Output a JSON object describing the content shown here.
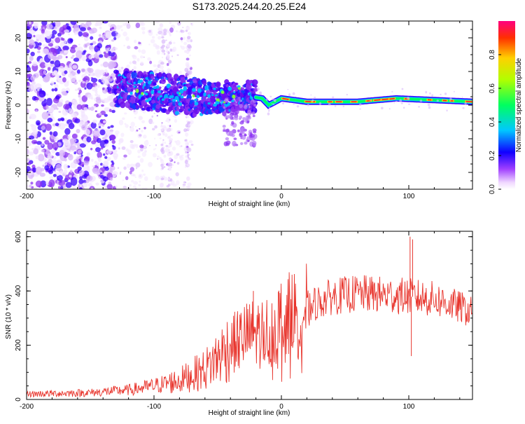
{
  "title": "S173.2025.244.20.25.E24",
  "chart_data": [
    {
      "type": "heatmap",
      "name": "spectrogram",
      "title": "S173.2025.244.20.25.E24",
      "xlabel": "Height of straight line (km)",
      "ylabel": "Frequency (Hz)",
      "xlim": [
        -200,
        150
      ],
      "ylim": [
        -25,
        25
      ],
      "x_ticks": [
        -200,
        -100,
        0,
        100
      ],
      "x_tick_labels": [
        "-200",
        "-100",
        "0",
        "100"
      ],
      "y_ticks": [
        -20,
        -10,
        0,
        10,
        20
      ],
      "y_tick_labels": [
        "-20",
        "-10",
        "0",
        "10",
        "20"
      ],
      "colorbar": {
        "label": "Normalized spectral amplitude",
        "range": [
          0,
          1
        ],
        "ticks": [
          0.0,
          0.2,
          0.4,
          0.6,
          0.8
        ],
        "tick_labels": [
          "0.0",
          "0.2",
          "0.4",
          "0.6",
          "0.8"
        ],
        "colors": [
          "#ffffff",
          "#d8b4f8",
          "#7a00ff",
          "#0010ff",
          "#00c8ff",
          "#00ff70",
          "#b0ff00",
          "#ffd000",
          "#ff3000",
          "#ff0080"
        ]
      },
      "ridge_centerline": [
        {
          "x": -130,
          "y": 5
        },
        {
          "x": -100,
          "y": 4
        },
        {
          "x": -60,
          "y": 2
        },
        {
          "x": -30,
          "y": 3
        },
        {
          "x": -15,
          "y": 2
        },
        {
          "x": -10,
          "y": 0
        },
        {
          "x": 0,
          "y": 2
        },
        {
          "x": 20,
          "y": 1
        },
        {
          "x": 60,
          "y": 1
        },
        {
          "x": 90,
          "y": 2
        },
        {
          "x": 150,
          "y": 1
        }
      ]
    },
    {
      "type": "line",
      "name": "snr",
      "xlabel": "Height of straight line (km)",
      "ylabel": "SNR (10 * v/v)",
      "xlim": [
        -200,
        150
      ],
      "ylim": [
        0,
        620
      ],
      "x_ticks": [
        -200,
        -100,
        0,
        100
      ],
      "x_tick_labels": [
        "-200",
        "-100",
        "0",
        "100"
      ],
      "y_ticks": [
        0,
        200,
        400,
        600
      ],
      "y_tick_labels": [
        "0",
        "200",
        "400",
        "600"
      ],
      "color": "#e8352d",
      "envelope": [
        {
          "x": -200,
          "y": 20
        },
        {
          "x": -150,
          "y": 25
        },
        {
          "x": -120,
          "y": 35
        },
        {
          "x": -100,
          "y": 50
        },
        {
          "x": -80,
          "y": 70
        },
        {
          "x": -60,
          "y": 110
        },
        {
          "x": -40,
          "y": 200
        },
        {
          "x": -25,
          "y": 240
        },
        {
          "x": -10,
          "y": 250
        },
        {
          "x": 0,
          "y": 290
        },
        {
          "x": 20,
          "y": 340
        },
        {
          "x": 40,
          "y": 380
        },
        {
          "x": 60,
          "y": 390
        },
        {
          "x": 80,
          "y": 385
        },
        {
          "x": 100,
          "y": 380
        },
        {
          "x": 120,
          "y": 370
        },
        {
          "x": 140,
          "y": 340
        },
        {
          "x": 150,
          "y": 320
        }
      ],
      "spikes": [
        {
          "x": -22,
          "y": 400
        },
        {
          "x": 101,
          "y": 600
        },
        {
          "x": 103,
          "y": 590
        },
        {
          "x": 102,
          "y": 160
        }
      ]
    }
  ]
}
